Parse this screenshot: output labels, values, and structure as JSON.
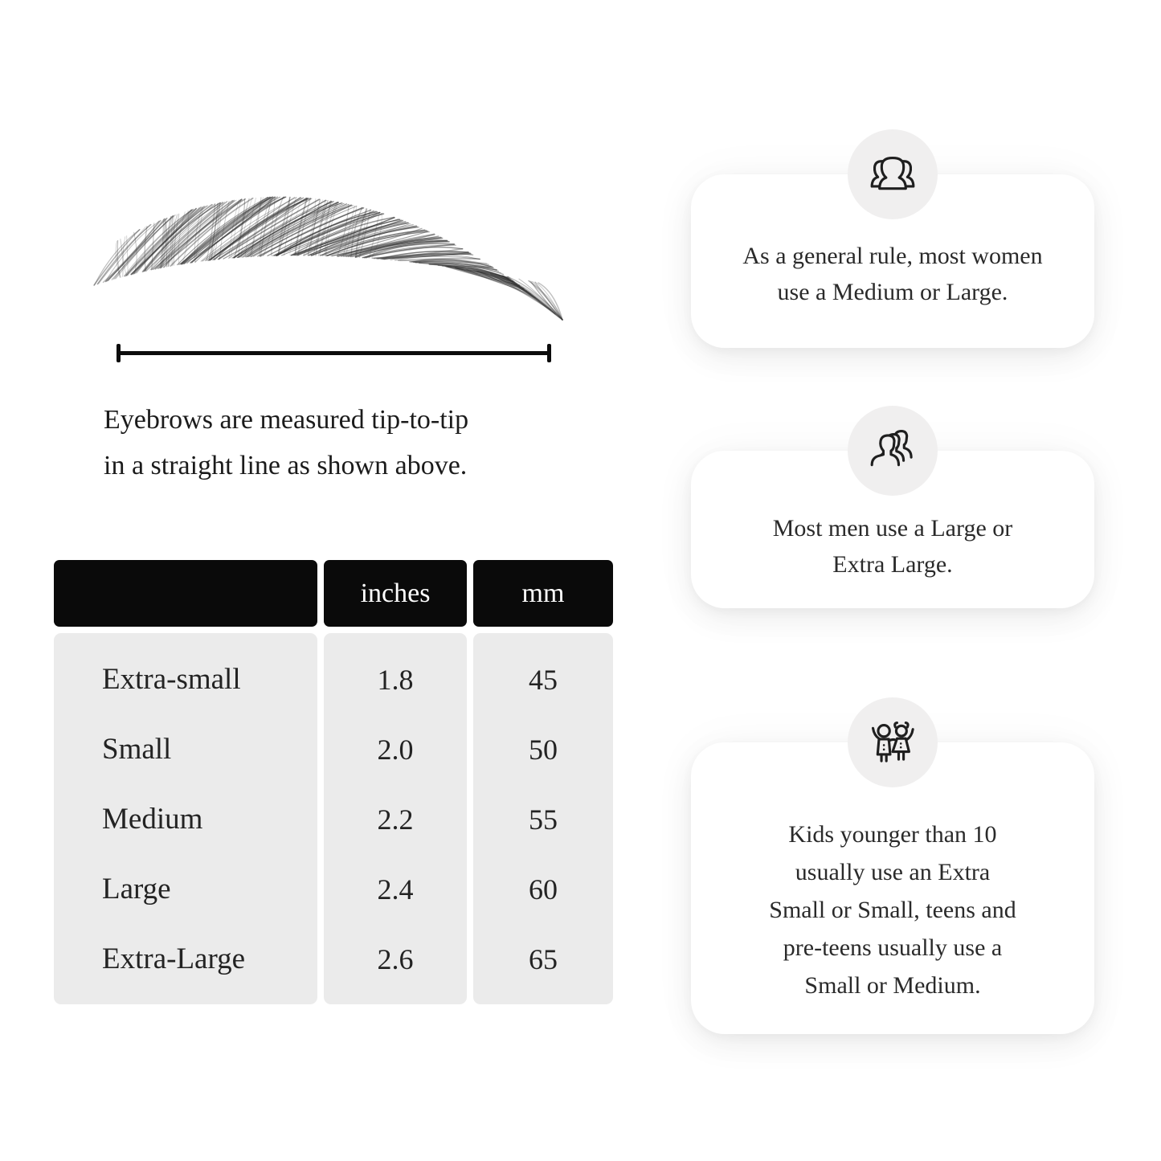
{
  "measurement": {
    "caption": "Eyebrows are measured tip-to-tip\nin a straight line as shown above."
  },
  "size_table": {
    "columns": [
      "",
      "inches",
      "mm"
    ],
    "rows": [
      [
        "Extra-small",
        "1.8",
        "45"
      ],
      [
        "Small",
        "2.0",
        "50"
      ],
      [
        "Medium",
        "2.2",
        "55"
      ],
      [
        "Large",
        "2.4",
        "60"
      ],
      [
        "Extra-Large",
        "2.6",
        "65"
      ]
    ]
  },
  "cards": [
    {
      "icon": "women-group-icon",
      "text": "As a general rule, most women\nuse a Medium or Large."
    },
    {
      "icon": "men-group-icon",
      "text": "Most men use a Large or\nExtra Large."
    },
    {
      "icon": "kids-icon",
      "text": "Kids younger than 10\nusually use an Extra\nSmall or Small, teens and\npre-teens usually use a\nSmall or Medium."
    }
  ],
  "colors": {
    "header_bg": "#0a0a0a",
    "header_text": "#ffffff",
    "row_bg": "#ebebeb",
    "card_bg": "#ffffff",
    "badge_bg": "#f0efef",
    "text": "#1e1e1e"
  }
}
